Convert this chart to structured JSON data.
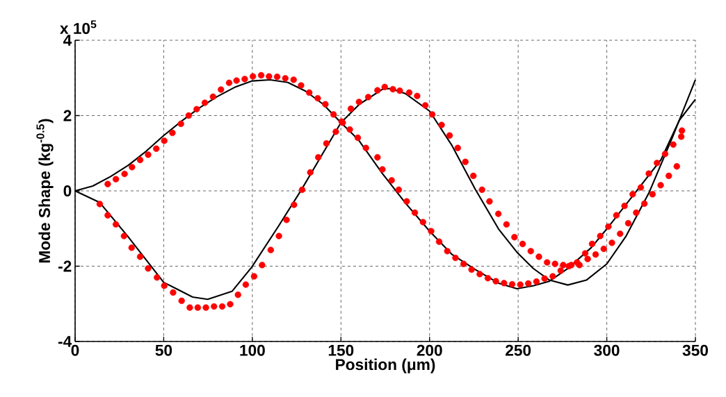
{
  "chart_data": {
    "type": "line",
    "xlabel": "Position (μm)",
    "ylabel": "Mode Shape (kg$^{-0.5}$)",
    "annotations": [
      "x 10$^{5}$"
    ],
    "xlim": [
      0,
      350
    ],
    "ylim": [
      -4,
      4
    ],
    "xticks": [
      0,
      50,
      100,
      150,
      200,
      250,
      300,
      350
    ],
    "yticks": [
      -4,
      -2,
      0,
      2,
      4
    ],
    "grid": true,
    "series": [
      {
        "marker": "none",
        "color": "#000000",
        "x": [
          0,
          10,
          20,
          30,
          40,
          50,
          60,
          70,
          80,
          90,
          100,
          110,
          120,
          130,
          140,
          150,
          160,
          173.4,
          186.5,
          200,
          212.7,
          225.8,
          238.9,
          249.3,
          258.5,
          267.6,
          278,
          291.2,
          300,
          317.5,
          330.6,
          341,
          350
        ],
        "values": [
          0,
          0.13,
          0.38,
          0.68,
          1.05,
          1.47,
          1.85,
          2.2,
          2.5,
          2.75,
          2.92,
          2.95,
          2.88,
          2.65,
          2.3,
          1.81,
          1.35,
          0.46,
          -0.33,
          -1.07,
          -1.69,
          -2.09,
          -2.45,
          -2.6,
          -2.52,
          -2.4,
          -2.06,
          -1.51,
          -1.01,
          0.04,
          0.83,
          1.88,
          2.43
        ]
      },
      {
        "marker": "none",
        "color": "#000000",
        "x": [
          0,
          13.9,
          29.6,
          50,
          66.3,
          74.8,
          88.5,
          99.6,
          114.6,
          127.7,
          140.8,
          150,
          160.4,
          173.4,
          178,
          186.5,
          200,
          212.7,
          225.8,
          238.9,
          249.3,
          258.5,
          267.6,
          278,
          288.5,
          300,
          310.9,
          324,
          337.2,
          350
        ],
        "values": [
          0,
          -0.31,
          -1.2,
          -2.43,
          -2.82,
          -2.88,
          -2.67,
          -2.03,
          -0.95,
          0.03,
          1.08,
          1.81,
          2.3,
          2.7,
          2.72,
          2.58,
          2.12,
          1.2,
          0.04,
          -1.01,
          -1.63,
          -2.06,
          -2.37,
          -2.5,
          -2.37,
          -1.94,
          -1.2,
          -0.03,
          1.44,
          2.95
        ]
      },
      {
        "type": "scatter",
        "marker": "circle",
        "color": "#ff0000",
        "x": [
          18.4,
          23,
          27.9,
          32.1,
          36.7,
          41.2,
          45.8,
          50.3,
          54.9,
          59.7,
          64.1,
          68.6,
          73.2,
          77.8,
          82.3,
          86.9,
          91.1,
          95.7,
          100.3,
          105,
          109.4,
          114,
          118.6,
          123.3,
          127.5,
          132.1,
          136.9,
          141.2,
          145.8,
          150.4,
          155,
          159.5,
          164.1,
          170.6,
          173.4,
          178.6,
          182.6,
          187.1,
          191.7,
          196.3,
          200.9,
          205.4,
          210,
          214.6,
          219.2,
          223.7,
          228.3,
          232.9,
          237.4,
          242,
          246.6,
          251.2,
          255.7,
          260.3,
          264.9,
          269.5,
          274,
          278.6,
          283.2,
          287.8,
          291.7,
          296.3,
          300.9,
          305.4,
          310,
          314.6,
          319.2,
          323.7,
          328.3,
          332.9,
          337.5,
          342,
          342.4
        ],
        "values": [
          0.18,
          0.31,
          0.45,
          0.63,
          0.82,
          0.96,
          1.12,
          1.33,
          1.54,
          1.78,
          2.0,
          2.17,
          2.34,
          2.5,
          2.69,
          2.87,
          2.93,
          2.97,
          3.04,
          3.07,
          3.04,
          3.03,
          2.99,
          2.95,
          2.8,
          2.61,
          2.46,
          2.3,
          2.03,
          1.84,
          1.63,
          1.41,
          1.14,
          0.89,
          0.57,
          0.28,
          0.03,
          -0.28,
          -0.58,
          -0.83,
          -1.07,
          -1.35,
          -1.6,
          -1.78,
          -1.94,
          -2.09,
          -2.21,
          -2.32,
          -2.4,
          -2.45,
          -2.48,
          -2.49,
          -2.46,
          -2.41,
          -2.33,
          -2.27,
          -2.12,
          -2.0,
          -1.9,
          -1.66,
          -1.41,
          -1.2,
          -0.95,
          -0.65,
          -0.4,
          -0.09,
          0.09,
          0.46,
          0.74,
          0.98,
          1.23,
          1.44,
          1.6
        ]
      },
      {
        "type": "scatter",
        "marker": "circle",
        "color": "#ff0000",
        "x": [
          13.9,
          18.4,
          23,
          27.6,
          31.9,
          36.7,
          41.2,
          46.2,
          50.3,
          55.3,
          60.1,
          64.7,
          69.2,
          73.8,
          78.4,
          83,
          87.5,
          91.9,
          96.3,
          101,
          105.5,
          110.4,
          115,
          119.3,
          123.5,
          128.1,
          132.7,
          137.2,
          141.8,
          147.1,
          151,
          155.6,
          160.2,
          165.4,
          170.6,
          174.7,
          179.3,
          183.2,
          188.5,
          193,
          197.6,
          201.5,
          206.8,
          211.3,
          215.9,
          220.2,
          224.7,
          229.6,
          233.8,
          238.8,
          243.4,
          247.9,
          252.5,
          257.1,
          261.7,
          266.3,
          270.8,
          275.4,
          280,
          284.6,
          289.2,
          293.7,
          298.3,
          302.9,
          307.5,
          312.1,
          316.6,
          321.2,
          325.8,
          330.4,
          335,
          339.5
        ],
        "values": [
          -0.35,
          -0.65,
          -0.89,
          -1.2,
          -1.51,
          -1.75,
          -2.06,
          -2.3,
          -2.52,
          -2.7,
          -2.92,
          -3.1,
          -3.1,
          -3.1,
          -3.07,
          -3.07,
          -3.01,
          -2.76,
          -2.49,
          -2.27,
          -1.97,
          -1.57,
          -1.2,
          -0.77,
          -0.37,
          0.03,
          0.49,
          0.89,
          1.26,
          1.57,
          1.81,
          2.18,
          2.36,
          2.49,
          2.67,
          2.76,
          2.7,
          2.66,
          2.61,
          2.52,
          2.27,
          2.03,
          1.75,
          1.47,
          1.14,
          0.77,
          0.4,
          0.03,
          -0.28,
          -0.61,
          -0.89,
          -1.23,
          -1.41,
          -1.6,
          -1.75,
          -1.9,
          -1.94,
          -1.97,
          -1.97,
          -1.97,
          -1.81,
          -1.69,
          -1.54,
          -1.38,
          -1.14,
          -0.86,
          -0.58,
          -0.34,
          -0.09,
          0.15,
          0.4,
          0.65
        ]
      }
    ]
  }
}
